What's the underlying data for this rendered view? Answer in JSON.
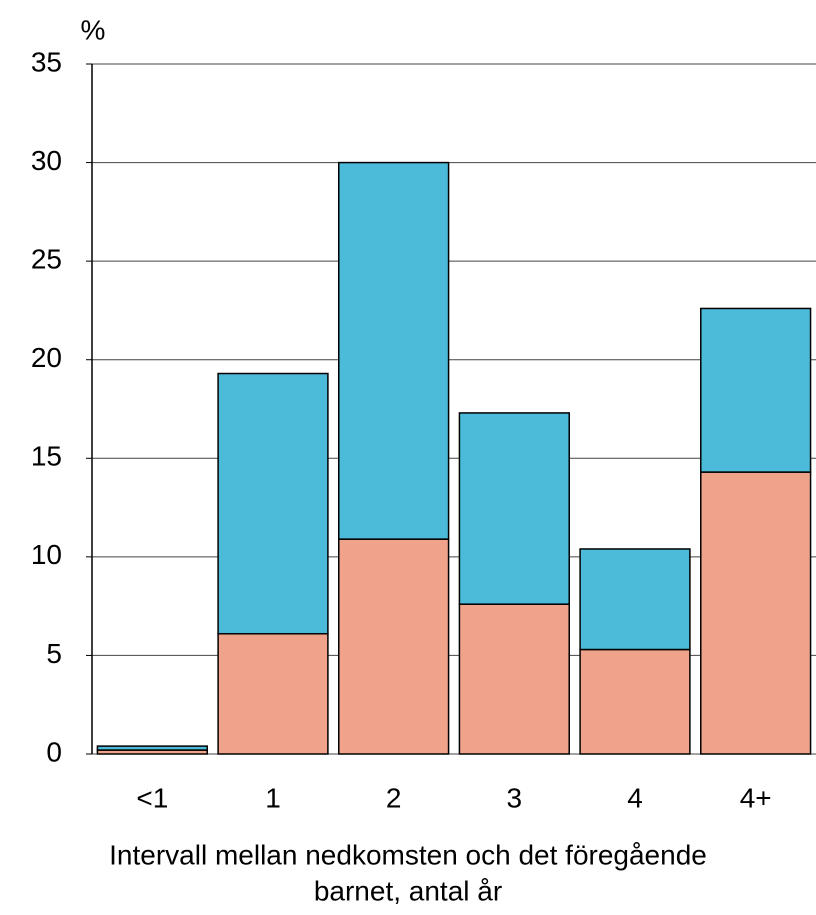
{
  "chart_data": {
    "type": "stacked_bar",
    "ylabel": "%",
    "xlabel": [
      "Intervall mellan nedkomsten och det föregående",
      "barnet, antal år"
    ],
    "categories": [
      "<1",
      "1",
      "2",
      "3",
      "4",
      "4+"
    ],
    "series": [
      {
        "color": "#f0a38b",
        "values": [
          0.2,
          6.1,
          10.9,
          7.6,
          5.3,
          14.3
        ]
      },
      {
        "color": "#4cbad9",
        "values": [
          0.2,
          13.2,
          19.1,
          9.7,
          5.1,
          8.3
        ]
      }
    ],
    "ylim": [
      0,
      35
    ],
    "yticks": [
      0,
      5,
      10,
      15,
      20,
      25,
      30,
      35
    ],
    "grid": true
  }
}
